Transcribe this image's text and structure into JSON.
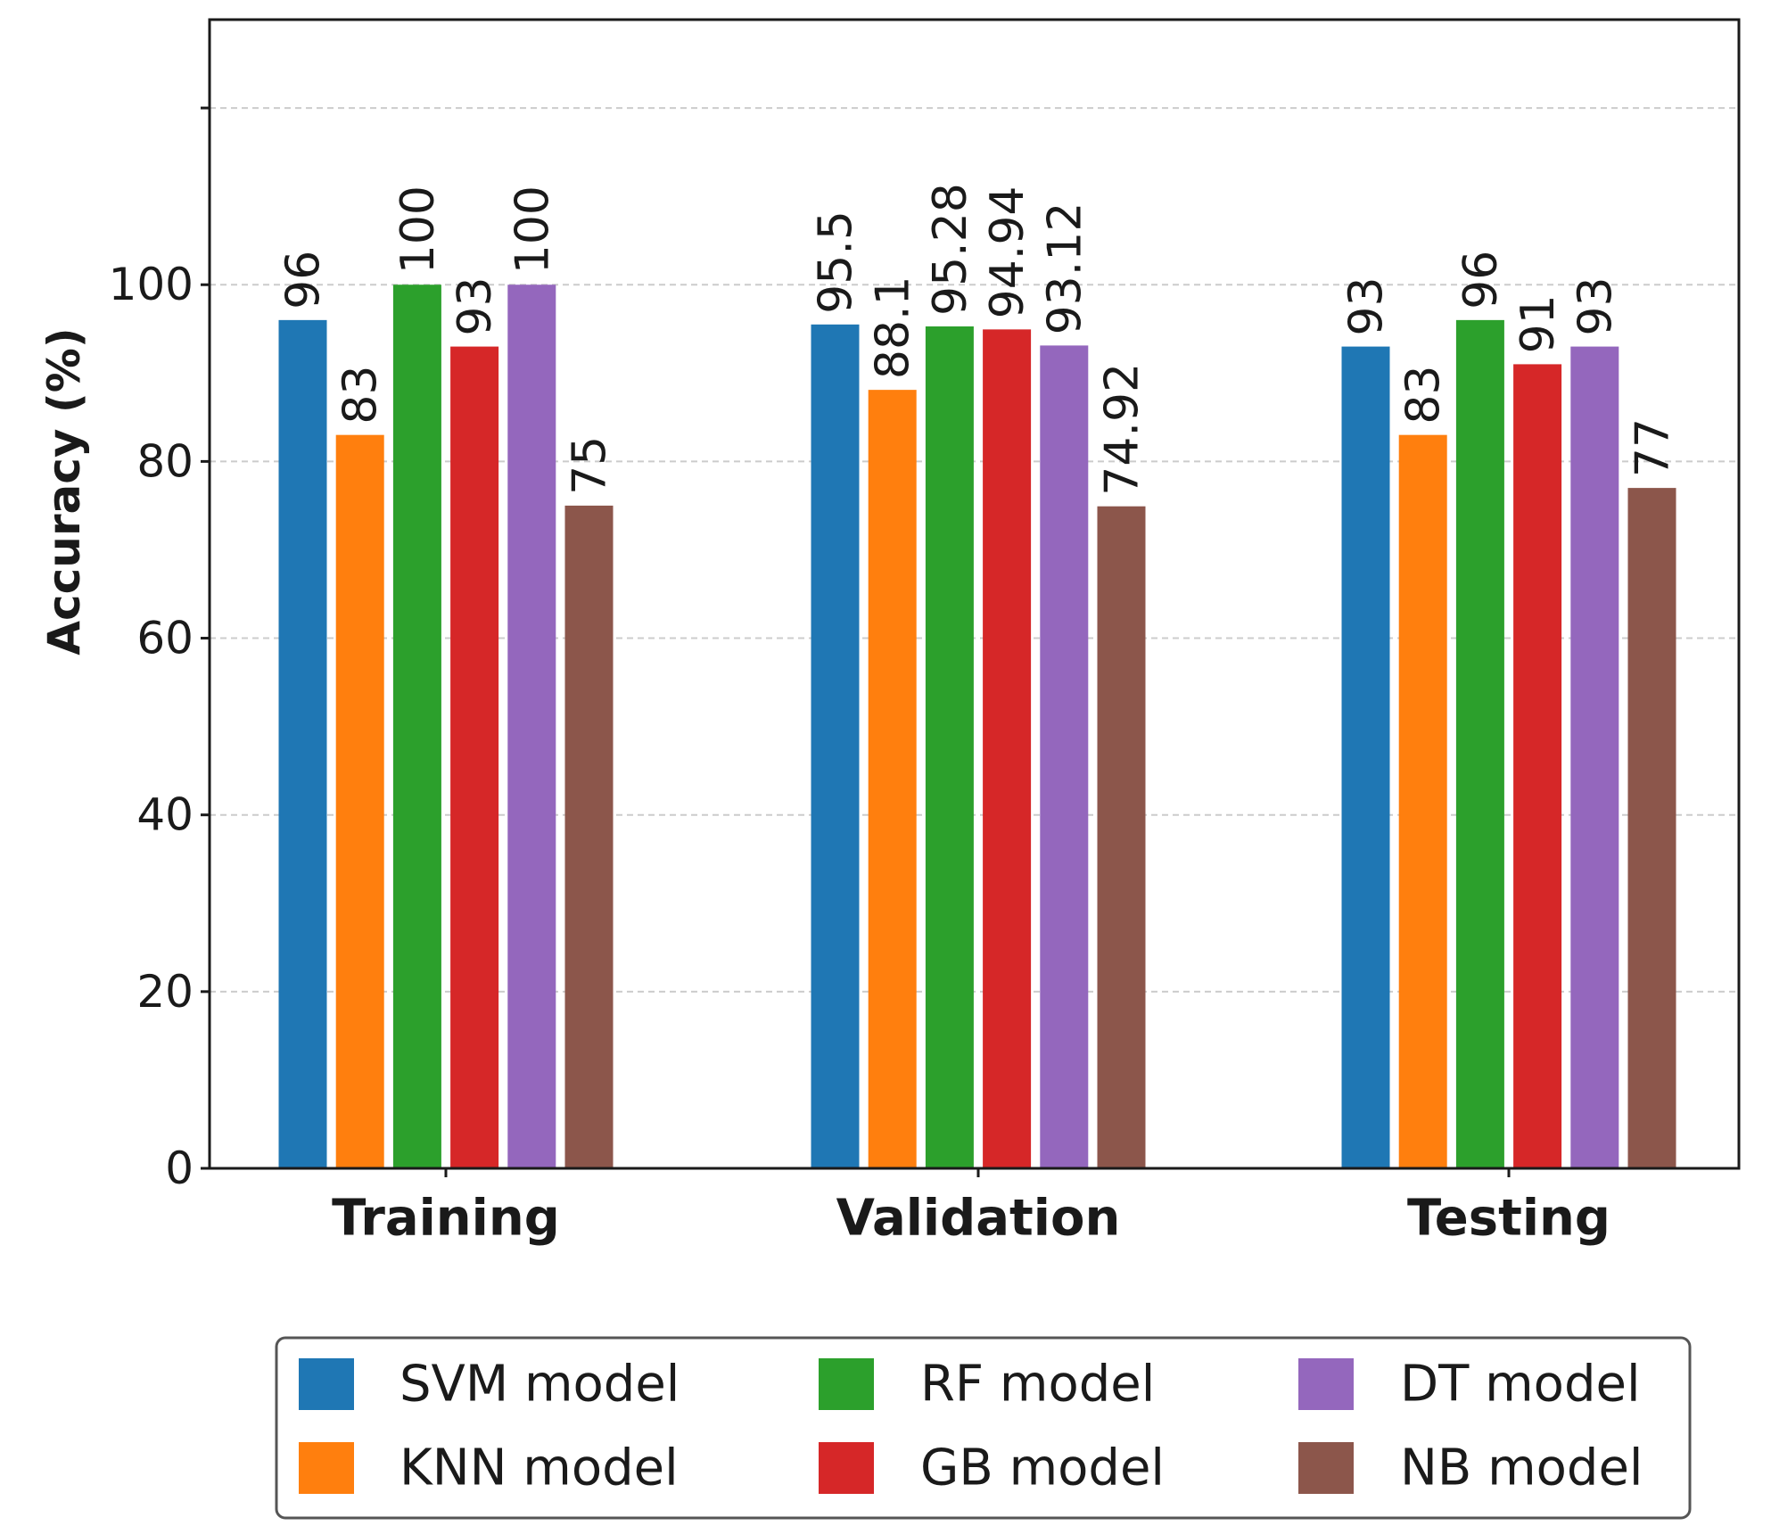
{
  "chart_data": {
    "type": "bar",
    "title": "",
    "xlabel": "",
    "ylabel": "Accuracy (%)",
    "categories": [
      "Training",
      "Validation",
      "Testing"
    ],
    "series": [
      {
        "name": "SVM model",
        "color": "#1f77b4",
        "values": [
          96,
          95.5,
          93
        ],
        "labels": [
          "96",
          "95.5",
          "93"
        ]
      },
      {
        "name": "KNN model",
        "color": "#ff7f0e",
        "values": [
          83,
          88.1,
          83
        ],
        "labels": [
          "83",
          "88.1",
          "83"
        ]
      },
      {
        "name": "RF model",
        "color": "#2ca02c",
        "values": [
          100,
          95.28,
          96
        ],
        "labels": [
          "100",
          "95.28",
          "96"
        ]
      },
      {
        "name": "GB model",
        "color": "#d62728",
        "values": [
          93,
          94.94,
          91
        ],
        "labels": [
          "93",
          "94.94",
          "91"
        ]
      },
      {
        "name": "DT model",
        "color": "#9467bd",
        "values": [
          100,
          93.12,
          93
        ],
        "labels": [
          "100",
          "93.12",
          "93"
        ]
      },
      {
        "name": "NB model",
        "color": "#8c564b",
        "values": [
          75,
          74.92,
          77
        ],
        "labels": [
          "75",
          "74.92",
          "77"
        ]
      }
    ],
    "ylim": [
      0,
      130
    ],
    "yticks": [
      0,
      20,
      40,
      60,
      80,
      100
    ],
    "yticks_unlabeled": [
      120
    ],
    "grid": true,
    "legend_position": "below-center",
    "legend_columns": 3
  }
}
